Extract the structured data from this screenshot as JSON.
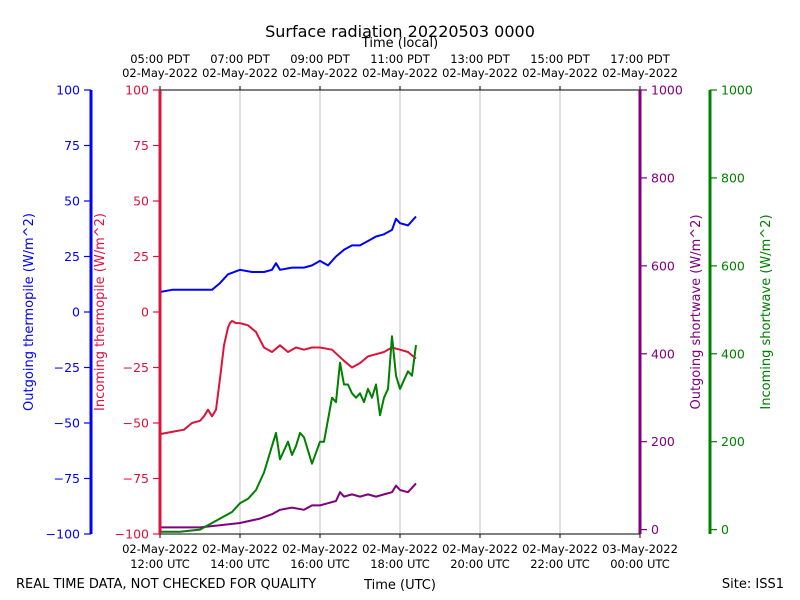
{
  "chart_data": {
    "type": "line",
    "title": "Surface radiation 20220503 0000",
    "top_axis_label": "Time (local)",
    "xlabel": "Time (UTC)",
    "footer_left": "REAL TIME DATA, NOT CHECKED FOR QUALITY",
    "footer_right": "Site: ISS1",
    "x_range_hours": [
      12,
      24
    ],
    "x_ticks_utc": [
      {
        "hour": 12,
        "date": "02-May-2022",
        "time": "12:00 UTC"
      },
      {
        "hour": 14,
        "date": "02-May-2022",
        "time": "14:00 UTC"
      },
      {
        "hour": 16,
        "date": "02-May-2022",
        "time": "16:00 UTC"
      },
      {
        "hour": 18,
        "date": "02-May-2022",
        "time": "18:00 UTC"
      },
      {
        "hour": 20,
        "date": "02-May-2022",
        "time": "20:00 UTC"
      },
      {
        "hour": 22,
        "date": "02-May-2022",
        "time": "22:00 UTC"
      },
      {
        "hour": 24,
        "date": "03-May-2022",
        "time": "00:00 UTC"
      }
    ],
    "x_ticks_local": [
      {
        "hour": 12,
        "time": "05:00 PDT",
        "date": "02-May-2022"
      },
      {
        "hour": 14,
        "time": "07:00 PDT",
        "date": "02-May-2022"
      },
      {
        "hour": 16,
        "time": "09:00 PDT",
        "date": "02-May-2022"
      },
      {
        "hour": 18,
        "time": "11:00 PDT",
        "date": "02-May-2022"
      },
      {
        "hour": 20,
        "time": "13:00 PDT",
        "date": "02-May-2022"
      },
      {
        "hour": 22,
        "time": "15:00 PDT",
        "date": "02-May-2022"
      },
      {
        "hour": 24,
        "time": "17:00 PDT",
        "date": "02-May-2022"
      }
    ],
    "axes": [
      {
        "id": "out_thermo",
        "label": "Outgoing thermopile (W/m^2)",
        "color": "#0000ff",
        "side": "left-outer",
        "ylim": [
          -100,
          100
        ],
        "ticks": [
          -100,
          -75,
          -50,
          -25,
          0,
          25,
          50,
          75,
          100
        ]
      },
      {
        "id": "in_thermo",
        "label": "Incoming thermopile (W/m^2)",
        "color": "#dc143c",
        "side": "left-inner",
        "ylim": [
          -100,
          100
        ],
        "ticks": [
          -100,
          -75,
          -50,
          -25,
          0,
          25,
          50,
          75,
          100
        ]
      },
      {
        "id": "out_sw",
        "label": "Outgoing shortwave (W/m^2)",
        "color": "#800080",
        "side": "right-inner",
        "ylim": [
          -10,
          1000
        ],
        "ticks": [
          0,
          200,
          400,
          600,
          800,
          1000
        ]
      },
      {
        "id": "in_sw",
        "label": "Incoming shortwave (W/m^2)",
        "color": "#008000",
        "side": "right-outer",
        "ylim": [
          -10,
          1000
        ],
        "ticks": [
          0,
          200,
          400,
          600,
          800,
          1000
        ]
      }
    ],
    "series": [
      {
        "name": "Outgoing thermopile",
        "axis": "out_thermo",
        "color": "#0000ff",
        "x": [
          12.0,
          12.3,
          12.6,
          13.0,
          13.3,
          13.5,
          13.7,
          14.0,
          14.3,
          14.6,
          14.8,
          14.9,
          15.0,
          15.3,
          15.6,
          15.8,
          16.0,
          16.2,
          16.4,
          16.6,
          16.8,
          17.0,
          17.2,
          17.4,
          17.6,
          17.8,
          17.9,
          18.0,
          18.2,
          18.4
        ],
        "values": [
          9,
          10,
          10,
          10,
          10,
          13,
          17,
          19,
          18,
          18,
          19,
          22,
          19,
          20,
          20,
          21,
          23,
          21,
          25,
          28,
          30,
          30,
          32,
          34,
          35,
          37,
          42,
          40,
          39,
          43
        ]
      },
      {
        "name": "Incoming thermopile",
        "axis": "in_thermo",
        "color": "#dc143c",
        "x": [
          12.0,
          12.3,
          12.6,
          12.8,
          13.0,
          13.1,
          13.2,
          13.3,
          13.4,
          13.5,
          13.6,
          13.7,
          13.75,
          13.8,
          13.9,
          14.0,
          14.2,
          14.4,
          14.6,
          14.8,
          15.0,
          15.2,
          15.4,
          15.6,
          15.8,
          16.0,
          16.3,
          16.6,
          16.8,
          17.0,
          17.2,
          17.4,
          17.6,
          17.8,
          18.0,
          18.2,
          18.4
        ],
        "values": [
          -55,
          -54,
          -53,
          -50,
          -49,
          -47,
          -44,
          -47,
          -44,
          -30,
          -15,
          -7,
          -5,
          -4,
          -5,
          -5,
          -6,
          -9,
          -16,
          -18,
          -15,
          -18,
          -16,
          -17,
          -16,
          -16,
          -17,
          -22,
          -25,
          -23,
          -20,
          -19,
          -18,
          -16,
          -17,
          -18,
          -21
        ]
      },
      {
        "name": "Outgoing shortwave",
        "axis": "out_sw",
        "color": "#800080",
        "x": [
          12.0,
          12.5,
          13.0,
          13.5,
          14.0,
          14.5,
          14.8,
          15.0,
          15.3,
          15.6,
          15.8,
          16.0,
          16.2,
          16.4,
          16.5,
          16.6,
          16.8,
          17.0,
          17.2,
          17.4,
          17.6,
          17.8,
          17.9,
          18.0,
          18.2,
          18.4
        ],
        "values": [
          5,
          5,
          5,
          10,
          15,
          25,
          35,
          45,
          50,
          45,
          55,
          55,
          60,
          65,
          85,
          75,
          80,
          75,
          80,
          75,
          80,
          85,
          100,
          90,
          85,
          105
        ]
      },
      {
        "name": "Incoming shortwave",
        "axis": "in_sw",
        "color": "#008000",
        "x": [
          12.0,
          12.5,
          13.0,
          13.3,
          13.6,
          13.8,
          14.0,
          14.2,
          14.4,
          14.6,
          14.7,
          14.8,
          14.9,
          15.0,
          15.1,
          15.2,
          15.3,
          15.4,
          15.5,
          15.6,
          15.8,
          16.0,
          16.1,
          16.2,
          16.3,
          16.4,
          16.5,
          16.6,
          16.7,
          16.8,
          16.9,
          17.0,
          17.1,
          17.2,
          17.3,
          17.4,
          17.5,
          17.6,
          17.7,
          17.8,
          17.9,
          18.0,
          18.2,
          18.3,
          18.4
        ],
        "values": [
          -5,
          -5,
          0,
          15,
          30,
          40,
          60,
          70,
          90,
          130,
          160,
          190,
          220,
          160,
          180,
          200,
          170,
          190,
          220,
          210,
          150,
          200,
          200,
          250,
          300,
          290,
          380,
          330,
          330,
          310,
          300,
          310,
          290,
          320,
          300,
          330,
          260,
          300,
          320,
          440,
          350,
          320,
          360,
          350,
          420
        ]
      }
    ]
  }
}
